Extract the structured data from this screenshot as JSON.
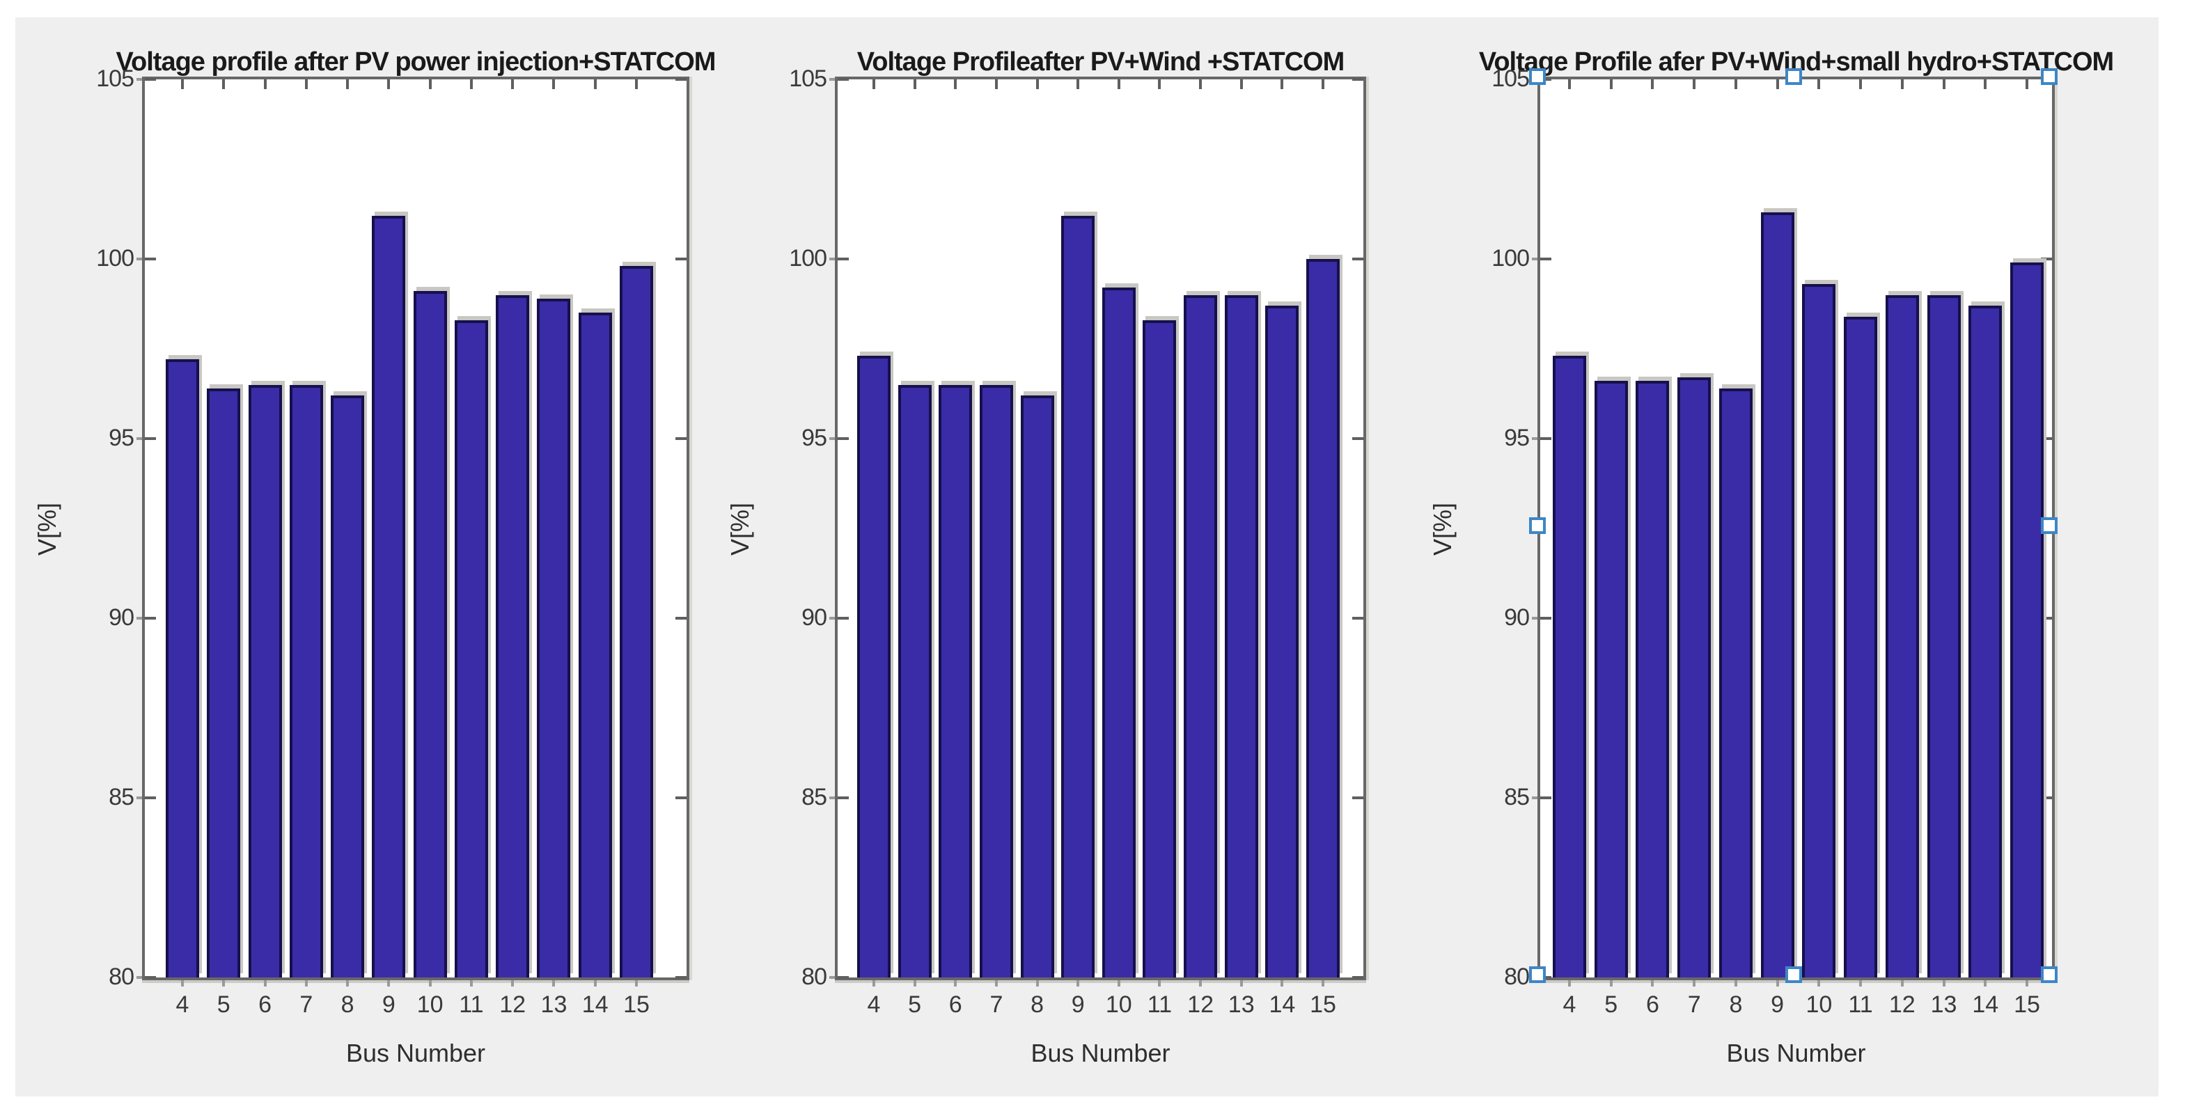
{
  "figure": {
    "background_color": "#efefef",
    "page_background": "#ffffff",
    "bar_fill_color": "#3a2ca6",
    "bar_edge_color": "#16104d",
    "axis_color": "#686868",
    "selection_handle_color": "#3d86c6"
  },
  "chart_data": [
    {
      "type": "bar",
      "title": "Voltage profile after PV power injection+STATCOM",
      "xlabel": "Bus Number",
      "ylabel": "V[%]",
      "categories": [
        "4",
        "5",
        "6",
        "7",
        "8",
        "9",
        "10",
        "11",
        "12",
        "13",
        "14",
        "15"
      ],
      "values": [
        97.2,
        96.4,
        96.5,
        96.5,
        96.2,
        101.2,
        99.1,
        98.3,
        99.0,
        98.9,
        98.5,
        99.8
      ],
      "ylim": [
        80,
        105
      ],
      "y_ticks": [
        80,
        85,
        90,
        95,
        100,
        105
      ],
      "grid": false,
      "legend": null,
      "selected": false
    },
    {
      "type": "bar",
      "title": "Voltage Profileafter PV+Wind +STATCOM",
      "xlabel": "Bus Number",
      "ylabel": "V[%]",
      "categories": [
        "4",
        "5",
        "6",
        "7",
        "8",
        "9",
        "10",
        "11",
        "12",
        "13",
        "14",
        "15"
      ],
      "values": [
        97.3,
        96.5,
        96.5,
        96.5,
        96.2,
        101.2,
        99.2,
        98.3,
        99.0,
        99.0,
        98.7,
        100.0
      ],
      "ylim": [
        80,
        105
      ],
      "y_ticks": [
        80,
        85,
        90,
        95,
        100,
        105
      ],
      "grid": false,
      "legend": null,
      "selected": false
    },
    {
      "type": "bar",
      "title": "Voltage Profile afer PV+Wind+small hydro+STATCOM",
      "xlabel": "Bus Number",
      "ylabel": "V[%]",
      "categories": [
        "4",
        "5",
        "6",
        "7",
        "8",
        "9",
        "10",
        "11",
        "12",
        "13",
        "14",
        "15"
      ],
      "values": [
        97.3,
        96.6,
        96.6,
        96.7,
        96.4,
        101.3,
        99.3,
        98.4,
        99.0,
        99.0,
        98.7,
        99.9
      ],
      "ylim": [
        80,
        105
      ],
      "y_ticks": [
        80,
        85,
        90,
        95,
        100,
        105
      ],
      "grid": false,
      "legend": null,
      "selected": true
    }
  ]
}
